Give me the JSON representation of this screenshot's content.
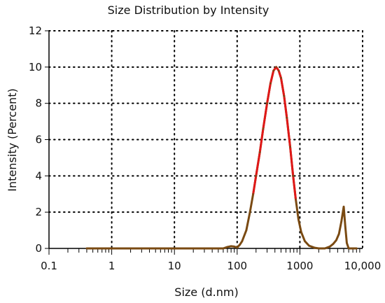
{
  "chart_data": {
    "type": "line",
    "title": "Size Distribution by Intensity",
    "xlabel": "Size (d.nm)",
    "ylabel": "Intensity (Percent)",
    "x_scale": "log",
    "xlim": [
      0.1,
      10000
    ],
    "ylim": [
      0,
      12
    ],
    "x_ticks": [
      0.1,
      1,
      10,
      100,
      1000,
      10000
    ],
    "x_tick_labels": [
      "0.1",
      "1",
      "10",
      "100",
      "1000",
      "10,000"
    ],
    "y_ticks": [
      0,
      2,
      4,
      6,
      8,
      10,
      12
    ],
    "y_tick_labels": [
      "0",
      "2",
      "4",
      "6",
      "8",
      "10",
      "12"
    ],
    "grid": true,
    "legend": "none",
    "colors": {
      "major_peak": "#e01818",
      "baseline": "#7a4a12"
    },
    "series": [
      {
        "x": [
          0.4,
          1,
          3,
          10,
          30,
          60,
          70,
          80,
          90,
          100,
          110,
          120,
          140,
          160,
          180,
          200,
          230,
          260,
          300,
          340,
          380,
          420,
          460,
          500,
          560,
          620,
          700,
          780,
          860,
          950,
          1050,
          1200,
          1400,
          1700,
          2000,
          2500,
          3000,
          3400,
          3800,
          4200,
          4600,
          5000,
          5300,
          5600,
          6000,
          6500,
          7000,
          8000
        ],
        "y": [
          0,
          0,
          0,
          0,
          0,
          0,
          0.08,
          0.12,
          0.1,
          0.05,
          0.2,
          0.4,
          1.0,
          2.0,
          3.0,
          4.0,
          5.3,
          6.6,
          8.0,
          9.1,
          9.8,
          10.0,
          9.8,
          9.4,
          8.4,
          7.2,
          5.6,
          4.0,
          2.7,
          1.6,
          0.9,
          0.4,
          0.15,
          0.04,
          0,
          0,
          0.1,
          0.25,
          0.45,
          0.8,
          1.5,
          2.3,
          1.2,
          0.3,
          0,
          0,
          0,
          0
        ]
      }
    ]
  }
}
